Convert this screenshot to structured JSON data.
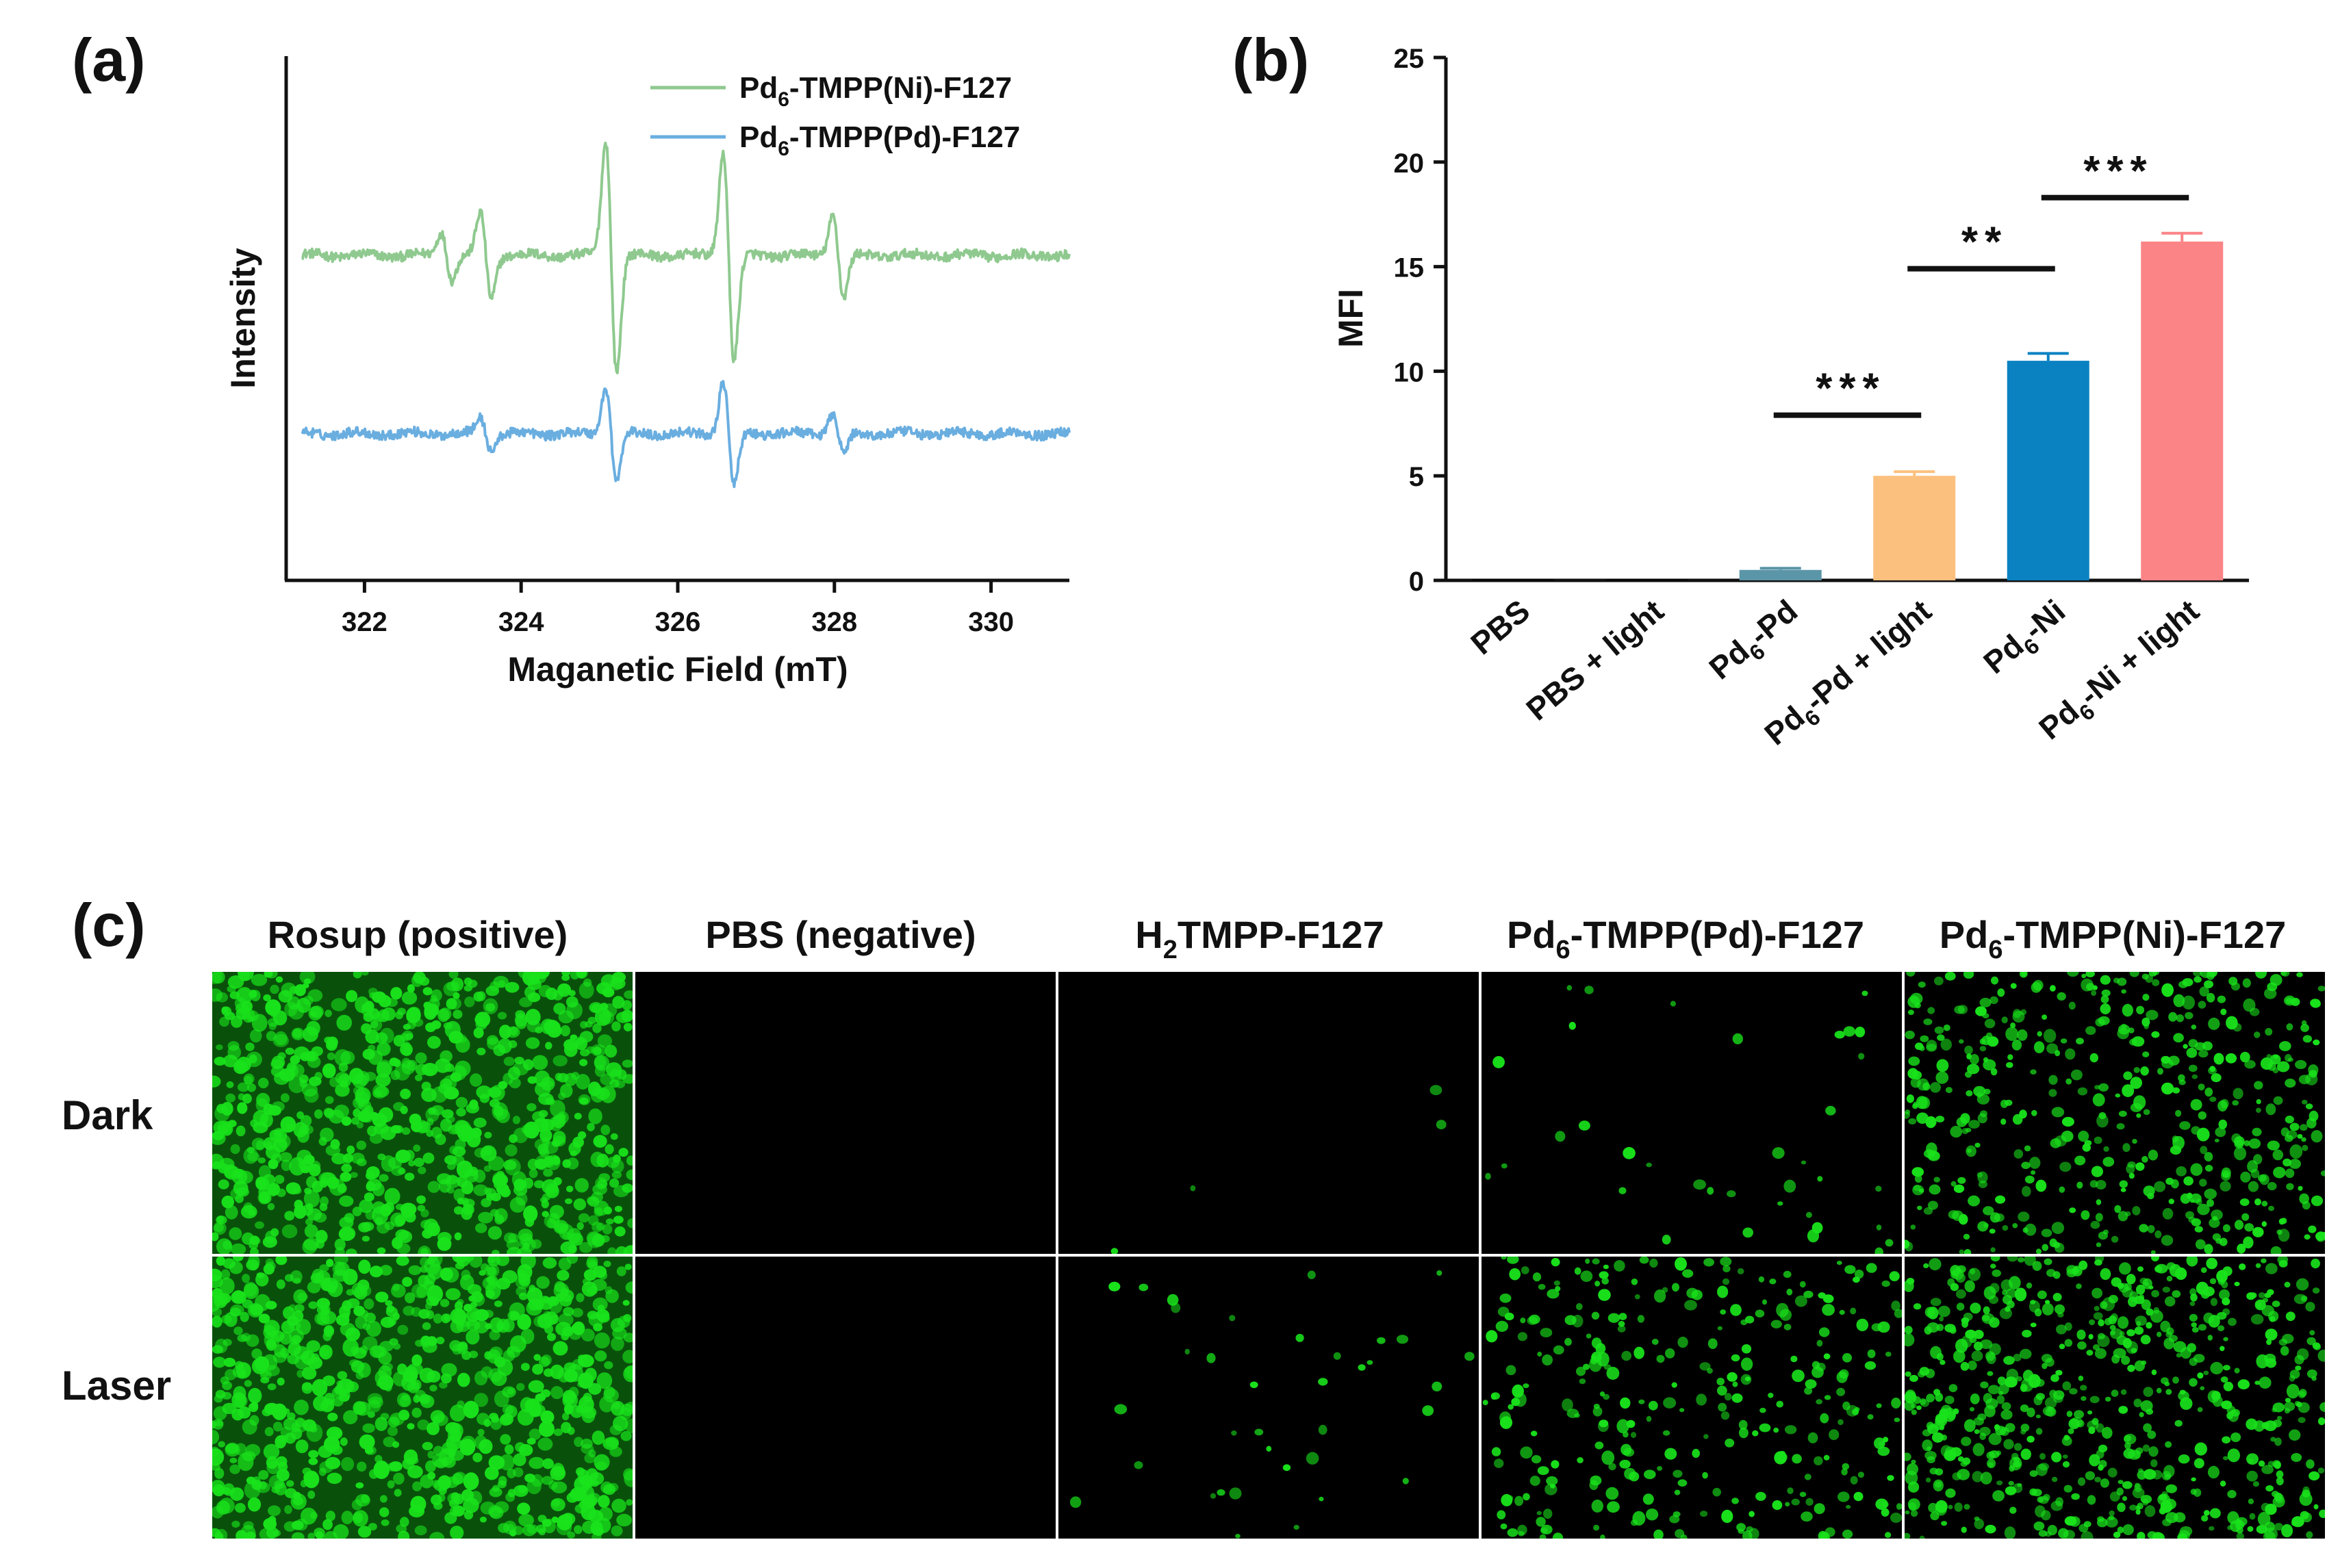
{
  "panel_labels": {
    "a": "(a)",
    "b": "(b)",
    "c": "(c)"
  },
  "colors": {
    "green_trace": "#8fc98f",
    "blue_trace": "#6aaee0",
    "bar_pd": "#5b95a8",
    "bar_pd_light": "#fcc07e",
    "bar_ni": "#0a82c2",
    "bar_ni_light": "#fb8486",
    "cell_green": "#19e21b"
  },
  "chart_data": [
    {
      "type": "line",
      "xlabel": "Maganetic Field (mT)",
      "ylabel": "Intensity",
      "xlim": [
        321.0,
        331.0
      ],
      "xticks": [
        322,
        324,
        326,
        328,
        330
      ],
      "yticks_shown": false,
      "legend_placement": "top-right",
      "series": [
        {
          "name": "Pd6-TMPP(Ni)-F127",
          "name_parts": {
            "base": "Pd",
            "sub": "6",
            "rest": "-TMPP(Ni)-F127"
          },
          "color_key": "green_trace",
          "baseline": 0.62,
          "peaks": [
            {
              "x": 323.05,
              "amp": 0.045
            },
            {
              "x": 323.55,
              "amp": 0.08
            },
            {
              "x": 325.15,
              "amp": 0.22
            },
            {
              "x": 326.65,
              "amp": 0.2
            },
            {
              "x": 328.05,
              "amp": 0.08
            }
          ]
        },
        {
          "name": "Pd6-TMPP(Pd)-F127",
          "name_parts": {
            "base": "Pd",
            "sub": "6",
            "rest": "-TMPP(Pd)-F127"
          },
          "color_key": "blue_trace",
          "baseline": 0.28,
          "peaks": [
            {
              "x": 323.55,
              "amp": 0.03
            },
            {
              "x": 325.15,
              "amp": 0.09
            },
            {
              "x": 326.65,
              "amp": 0.1
            },
            {
              "x": 328.05,
              "amp": 0.04
            }
          ]
        }
      ]
    },
    {
      "type": "bar",
      "ylabel": "MFI",
      "ylim": [
        0,
        25
      ],
      "yticks": [
        0,
        5,
        10,
        15,
        20,
        25
      ],
      "categories": [
        {
          "base": "PBS",
          "sub": "",
          "rest": ""
        },
        {
          "base": "PBS + light",
          "sub": "",
          "rest": ""
        },
        {
          "base": "Pd",
          "sub": "6",
          "rest": "-Pd"
        },
        {
          "base": "Pd",
          "sub": "6",
          "rest": "-Pd + light"
        },
        {
          "base": "Pd",
          "sub": "6",
          "rest": "-Ni"
        },
        {
          "base": "Pd",
          "sub": "6",
          "rest": "-Ni + light"
        }
      ],
      "values": [
        0.05,
        0.05,
        0.5,
        5.0,
        10.5,
        16.2
      ],
      "errors": [
        0.0,
        0.0,
        0.08,
        0.2,
        0.35,
        0.4
      ],
      "bar_color_keys": [
        null,
        null,
        "bar_pd",
        "bar_pd_light",
        "bar_ni",
        "bar_ni_light"
      ],
      "significance": [
        {
          "from": 2,
          "to": 3,
          "label": "***",
          "y": 7.9
        },
        {
          "from": 3,
          "to": 4,
          "label": "**",
          "y": 14.9
        },
        {
          "from": 4,
          "to": 5,
          "label": "***",
          "y": 18.3
        }
      ]
    }
  ],
  "micrographs": {
    "columns": [
      {
        "base": "Rosup (positive)",
        "sub": "",
        "rest": "",
        "density": [
          0.95,
          0.95
        ]
      },
      {
        "base": "PBS (negative)",
        "sub": "",
        "rest": "",
        "density": [
          0.0,
          0.0
        ]
      },
      {
        "base": "H",
        "sub": "2",
        "rest": "TMPP-F127",
        "density": [
          0.004,
          0.04
        ]
      },
      {
        "base": "Pd",
        "sub": "6",
        "rest": "-TMPP(Pd)-F127",
        "density": [
          0.04,
          0.35
        ]
      },
      {
        "base": "Pd",
        "sub": "6",
        "rest": "-TMPP(Ni)-F127",
        "density": [
          0.55,
          0.75
        ]
      }
    ],
    "rows": [
      "Dark",
      "Laser"
    ]
  }
}
